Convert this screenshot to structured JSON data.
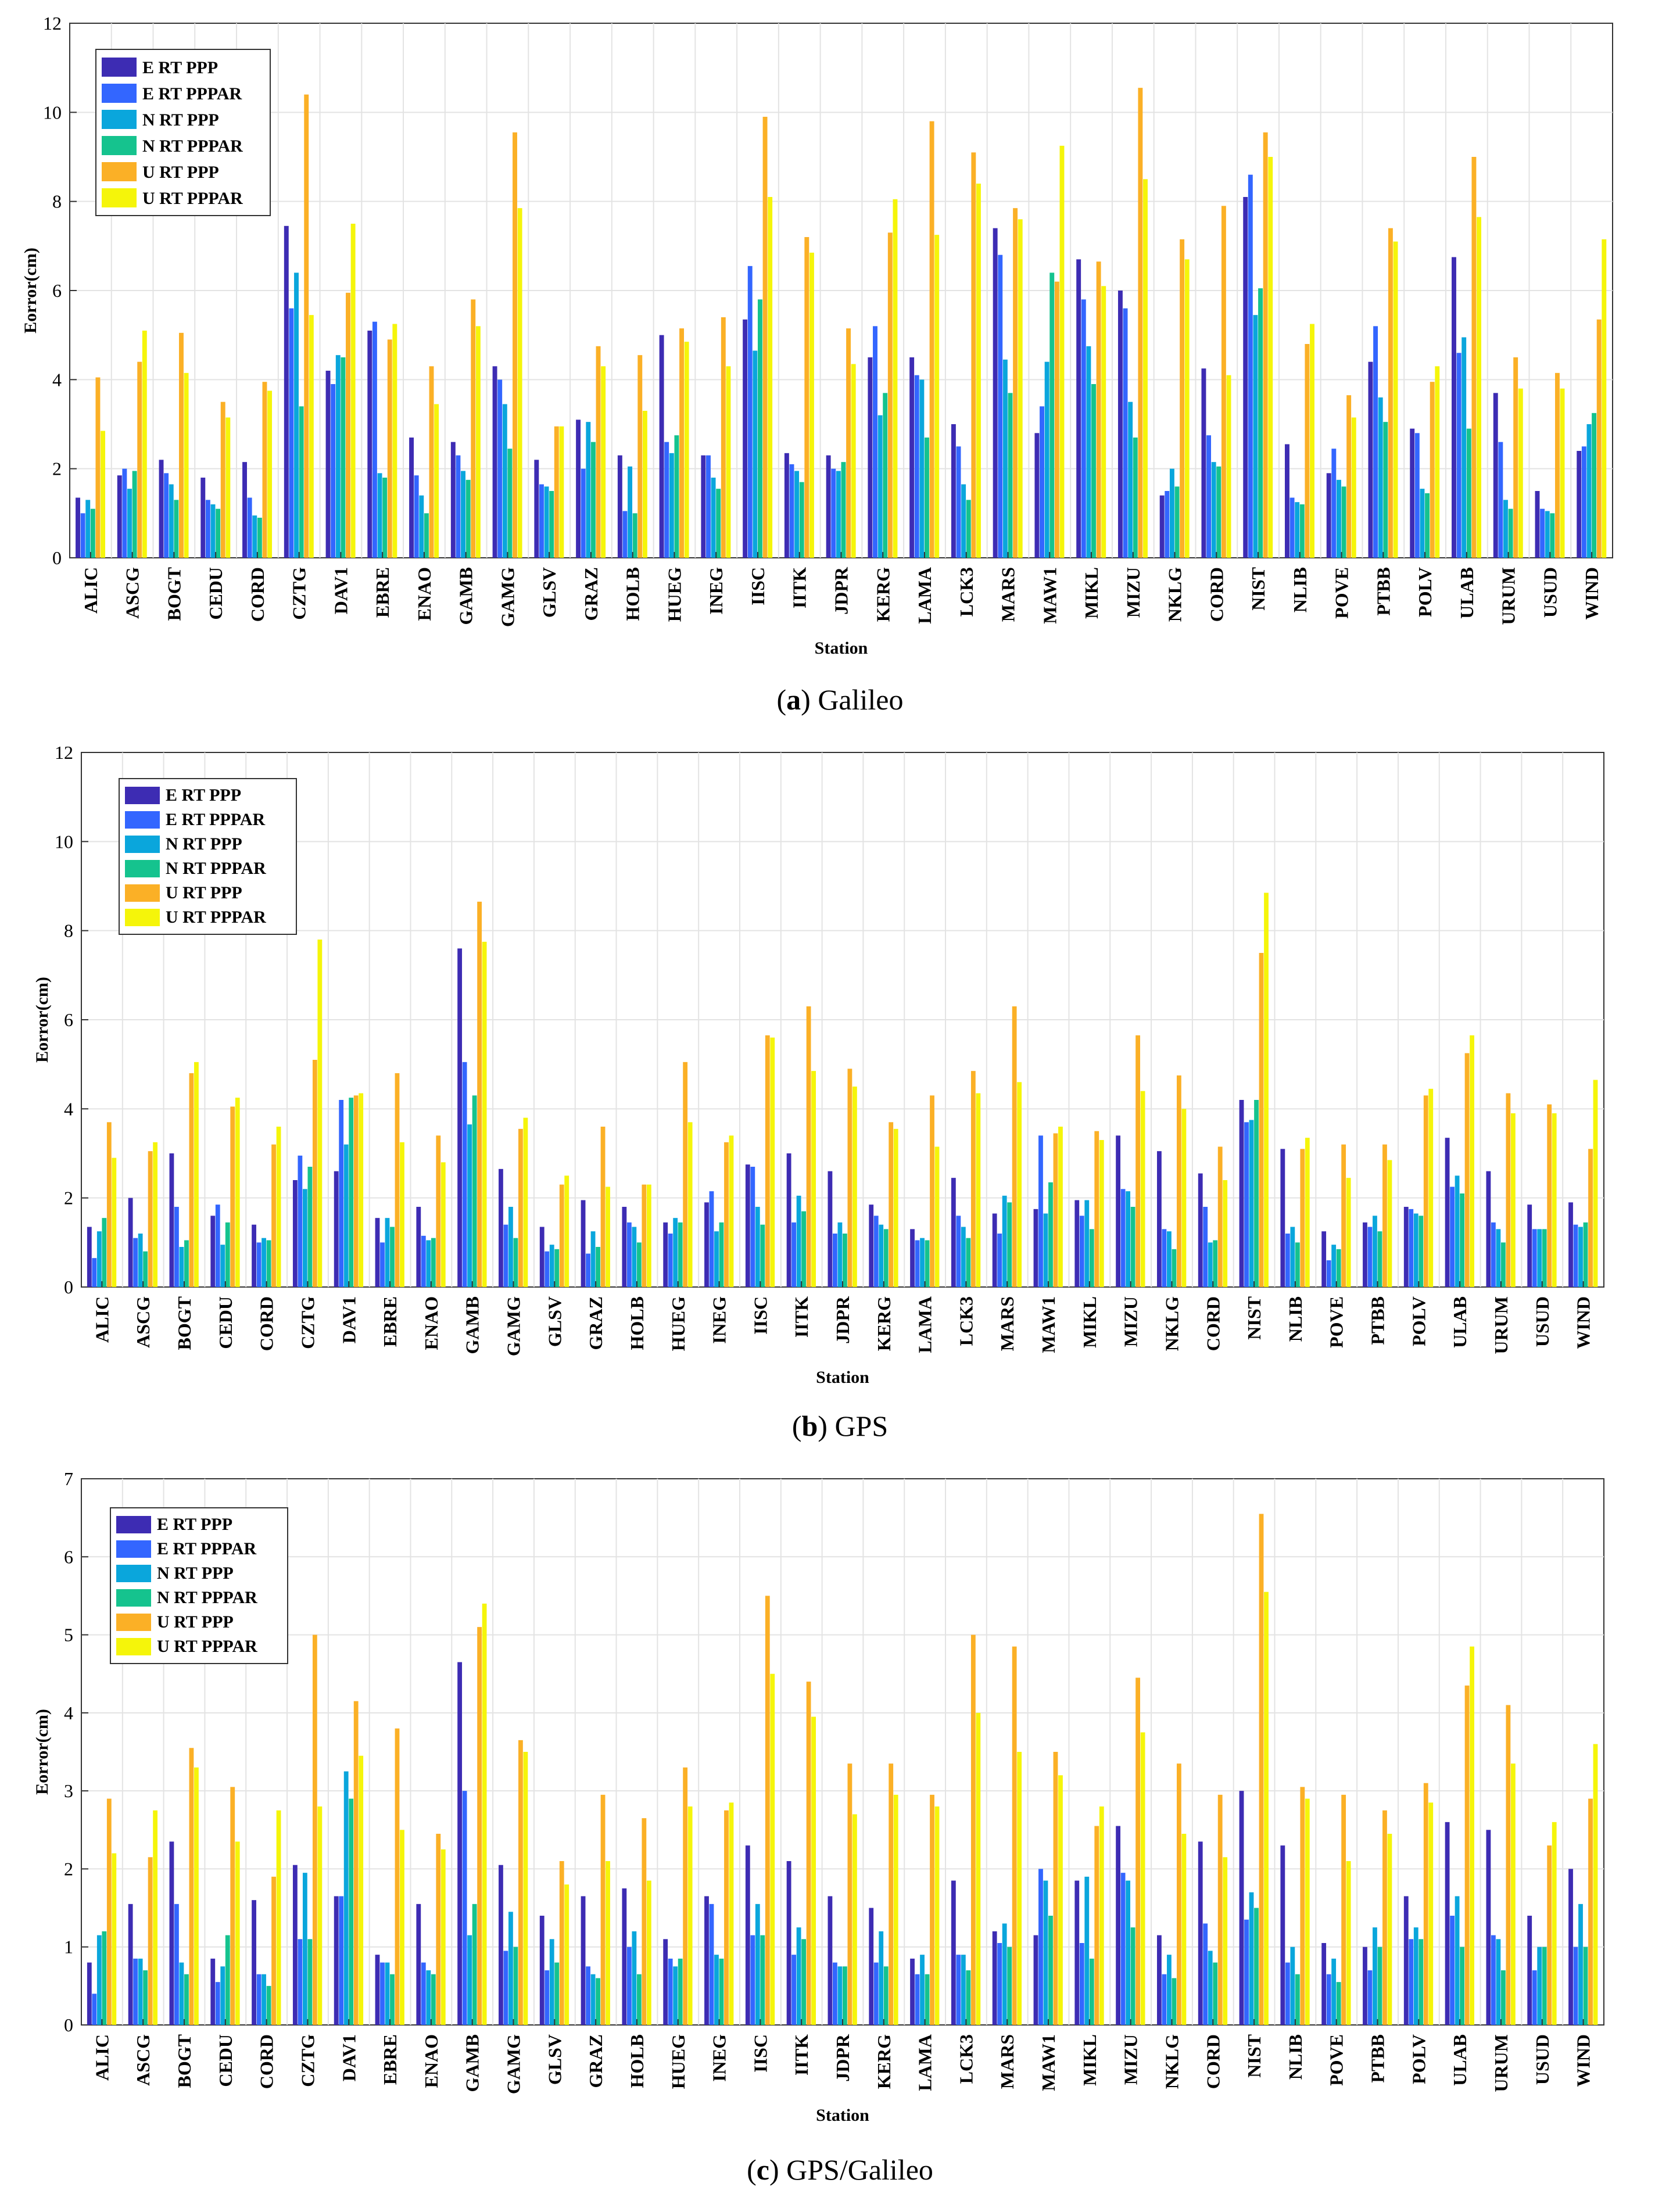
{
  "colors": {
    "E_RT_PPP": "#3d2cb3",
    "E_RT_PPPAR": "#3366ff",
    "N_RT_PPP": "#0aa6dc",
    "N_RT_PPPAR": "#15c38e",
    "U_RT_PPP": "#fbb026",
    "U_RT_PPPAR": "#f5f50a",
    "grid": "#e3e3e3",
    "axis": "#333333"
  },
  "captions": [
    {
      "letter": "a",
      "text": " Galileo"
    },
    {
      "letter": "b",
      "text": " GPS"
    },
    {
      "letter": "c",
      "text": " GPS/Galileo"
    }
  ],
  "chart_data": [
    {
      "type": "bar",
      "title": "(a) Galileo",
      "xlabel": "Station",
      "ylabel": "Eorror(cm)",
      "ylim": [
        0,
        12
      ],
      "yticks": [
        0,
        2,
        4,
        6,
        8,
        10,
        12
      ],
      "legend_position": "top-left",
      "categories": [
        "ALIC",
        "ASCG",
        "BOGT",
        "CEDU",
        "CORD",
        "CZTG",
        "DAV1",
        "EBRE",
        "ENAO",
        "GAMB",
        "GAMG",
        "GLSV",
        "GRAZ",
        "HOLB",
        "HUEG",
        "INEG",
        "IISC",
        "IITK",
        "JDPR",
        "KERG",
        "LAMA",
        "LCK3",
        "MARS",
        "MAW1",
        "MIKL",
        "MIZU",
        "NKLG",
        "CORD",
        "NIST",
        "NLIB",
        "POVE",
        "PTBB",
        "POLV",
        "ULAB",
        "URUM",
        "USUD",
        "WIND"
      ],
      "series": [
        {
          "name": "E RT PPP",
          "color_key": "E_RT_PPP",
          "values": [
            1.35,
            1.85,
            2.2,
            1.8,
            2.15,
            7.45,
            4.2,
            5.1,
            2.7,
            2.6,
            4.3,
            2.2,
            3.1,
            2.3,
            5.0,
            2.3,
            5.35,
            2.35,
            2.3,
            4.5,
            4.5,
            3.0,
            7.4,
            2.8,
            6.7,
            6.0,
            1.4,
            4.25,
            8.1,
            2.55,
            1.9,
            4.4,
            2.9,
            6.75,
            3.7,
            1.5,
            2.4
          ]
        },
        {
          "name": "E RT PPPAR",
          "color_key": "E_RT_PPPAR",
          "values": [
            1.0,
            2.0,
            1.9,
            1.3,
            1.35,
            5.6,
            3.9,
            5.3,
            1.85,
            2.3,
            4.0,
            1.65,
            2.0,
            1.05,
            2.6,
            2.3,
            6.55,
            2.1,
            2.0,
            5.2,
            4.1,
            2.5,
            6.8,
            3.4,
            5.8,
            5.6,
            1.5,
            2.75,
            8.6,
            1.35,
            2.45,
            5.2,
            2.8,
            4.6,
            2.6,
            1.1,
            2.5
          ]
        },
        {
          "name": "N RT PPP",
          "color_key": "N_RT_PPP",
          "values": [
            1.3,
            1.55,
            1.65,
            1.2,
            0.95,
            6.4,
            4.55,
            1.9,
            1.4,
            1.95,
            3.45,
            1.6,
            3.05,
            2.05,
            2.35,
            1.8,
            4.65,
            1.95,
            1.95,
            3.2,
            4.0,
            1.65,
            4.45,
            4.4,
            4.75,
            3.5,
            2.0,
            2.15,
            5.45,
            1.25,
            1.75,
            3.6,
            1.55,
            4.95,
            1.3,
            1.05,
            3.0
          ]
        },
        {
          "name": "N RT PPPAR",
          "color_key": "N_RT_PPPAR",
          "values": [
            1.1,
            1.95,
            1.3,
            1.1,
            0.9,
            3.4,
            4.5,
            1.8,
            1.0,
            1.75,
            2.45,
            1.5,
            2.6,
            1.0,
            2.75,
            1.55,
            5.8,
            1.7,
            2.15,
            3.7,
            2.7,
            1.3,
            3.7,
            6.4,
            3.9,
            2.7,
            1.6,
            2.05,
            6.05,
            1.2,
            1.6,
            3.05,
            1.45,
            2.9,
            1.1,
            1.0,
            3.25
          ]
        },
        {
          "name": "U RT PPP",
          "color_key": "U_RT_PPP",
          "values": [
            4.05,
            4.4,
            5.05,
            3.5,
            3.95,
            10.4,
            5.95,
            4.9,
            4.3,
            5.8,
            9.55,
            2.95,
            4.75,
            4.55,
            5.15,
            5.4,
            9.9,
            7.2,
            5.15,
            7.3,
            9.8,
            9.1,
            7.85,
            6.2,
            6.65,
            10.55,
            7.15,
            7.9,
            9.55,
            4.8,
            3.65,
            7.4,
            3.95,
            9.0,
            4.5,
            4.15,
            5.35
          ]
        },
        {
          "name": "U RT PPPAR",
          "color_key": "U_RT_PPPAR",
          "values": [
            2.85,
            5.1,
            4.15,
            3.15,
            3.75,
            5.45,
            7.5,
            5.25,
            3.45,
            5.2,
            7.85,
            2.95,
            4.3,
            3.3,
            4.85,
            4.3,
            8.1,
            6.85,
            4.35,
            8.05,
            7.25,
            8.4,
            7.6,
            9.25,
            6.1,
            8.5,
            6.7,
            4.1,
            9.0,
            5.25,
            3.15,
            7.1,
            4.3,
            7.65,
            3.8,
            3.8,
            7.15
          ]
        }
      ]
    },
    {
      "type": "bar",
      "title": "(b) GPS",
      "xlabel": "Station",
      "ylabel": "Eorror(cm)",
      "ylim": [
        0,
        12
      ],
      "yticks": [
        0,
        2,
        4,
        6,
        8,
        10,
        12
      ],
      "legend_position": "top-left",
      "categories": [
        "ALIC",
        "ASCG",
        "BOGT",
        "CEDU",
        "CORD",
        "CZTG",
        "DAV1",
        "EBRE",
        "ENAO",
        "GAMB",
        "GAMG",
        "GLSV",
        "GRAZ",
        "HOLB",
        "HUEG",
        "INEG",
        "IISC",
        "IITK",
        "JDPR",
        "KERG",
        "LAMA",
        "LCK3",
        "MARS",
        "MAW1",
        "MIKL",
        "MIZU",
        "NKLG",
        "CORD",
        "NIST",
        "NLIB",
        "POVE",
        "PTBB",
        "POLV",
        "ULAB",
        "URUM",
        "USUD",
        "WIND"
      ],
      "series": [
        {
          "name": "E RT PPP",
          "color_key": "E_RT_PPP",
          "values": [
            1.35,
            2.0,
            3.0,
            1.6,
            1.4,
            2.4,
            2.6,
            1.55,
            1.8,
            7.6,
            2.65,
            1.35,
            1.95,
            1.8,
            1.45,
            1.9,
            2.75,
            3.0,
            2.6,
            1.85,
            1.3,
            2.45,
            1.65,
            1.75,
            1.95,
            3.4,
            3.05,
            2.55,
            4.2,
            3.1,
            1.25,
            1.45,
            1.8,
            3.35,
            2.6,
            1.85,
            1.9
          ]
        },
        {
          "name": "E RT PPPAR",
          "color_key": "E_RT_PPPAR",
          "values": [
            0.65,
            1.1,
            1.8,
            1.85,
            1.0,
            2.95,
            4.2,
            1.0,
            1.15,
            5.05,
            1.4,
            0.8,
            0.75,
            1.45,
            1.2,
            2.15,
            2.7,
            1.45,
            1.2,
            1.6,
            1.05,
            1.6,
            1.2,
            3.4,
            1.6,
            2.2,
            1.3,
            1.8,
            3.7,
            1.2,
            0.6,
            1.35,
            1.75,
            2.25,
            1.45,
            1.3,
            1.4
          ]
        },
        {
          "name": "N RT PPP",
          "color_key": "N_RT_PPP",
          "values": [
            1.25,
            1.2,
            0.9,
            0.95,
            1.1,
            2.2,
            3.2,
            1.55,
            1.05,
            3.65,
            1.8,
            0.95,
            1.25,
            1.35,
            1.55,
            1.25,
            1.8,
            2.05,
            1.45,
            1.4,
            1.1,
            1.35,
            2.05,
            1.65,
            1.95,
            2.15,
            1.25,
            1.0,
            3.75,
            1.35,
            0.95,
            1.6,
            1.65,
            2.5,
            1.3,
            1.3,
            1.35
          ]
        },
        {
          "name": "N RT PPPAR",
          "color_key": "N_RT_PPPAR",
          "values": [
            1.55,
            0.8,
            1.05,
            1.45,
            1.05,
            2.7,
            4.25,
            1.35,
            1.1,
            4.3,
            1.1,
            0.85,
            0.9,
            1.0,
            1.45,
            1.45,
            1.4,
            1.7,
            1.2,
            1.3,
            1.05,
            1.1,
            1.9,
            2.35,
            1.3,
            1.8,
            0.85,
            1.05,
            4.2,
            1.0,
            0.85,
            1.25,
            1.6,
            2.1,
            1.0,
            1.3,
            1.45
          ]
        },
        {
          "name": "U RT PPP",
          "color_key": "U_RT_PPP",
          "values": [
            3.7,
            3.05,
            4.8,
            4.05,
            3.2,
            5.1,
            4.3,
            4.8,
            3.4,
            8.65,
            3.55,
            2.3,
            3.6,
            2.3,
            5.05,
            3.25,
            5.65,
            6.3,
            4.9,
            3.7,
            4.3,
            4.85,
            6.3,
            3.45,
            3.5,
            5.65,
            4.75,
            3.15,
            7.5,
            3.1,
            3.2,
            3.2,
            4.3,
            5.25,
            4.35,
            4.1,
            3.1
          ]
        },
        {
          "name": "U RT PPPAR",
          "color_key": "U_RT_PPPAR",
          "values": [
            2.9,
            3.25,
            5.05,
            4.25,
            3.6,
            7.8,
            4.35,
            3.25,
            2.8,
            7.75,
            3.8,
            2.5,
            2.25,
            2.3,
            3.7,
            3.4,
            5.6,
            4.85,
            4.5,
            3.55,
            3.15,
            4.35,
            4.6,
            3.6,
            3.3,
            4.4,
            4.0,
            2.4,
            8.85,
            3.35,
            2.45,
            2.85,
            4.45,
            5.65,
            3.9,
            3.9,
            4.65
          ]
        }
      ]
    },
    {
      "type": "bar",
      "title": "(c) GPS/Galileo",
      "xlabel": "Station",
      "ylabel": "Eorror(cm)",
      "ylim": [
        0,
        7
      ],
      "yticks": [
        0,
        1,
        2,
        3,
        4,
        5,
        6,
        7
      ],
      "legend_position": "top-left",
      "categories": [
        "ALIC",
        "ASCG",
        "BOGT",
        "CEDU",
        "CORD",
        "CZTG",
        "DAV1",
        "EBRE",
        "ENAO",
        "GAMB",
        "GAMG",
        "GLSV",
        "GRAZ",
        "HOLB",
        "HUEG",
        "INEG",
        "IISC",
        "IITK",
        "JDPR",
        "KERG",
        "LAMA",
        "LCK3",
        "MARS",
        "MAW1",
        "MIKL",
        "MIZU",
        "NKLG",
        "CORD",
        "NIST",
        "NLIB",
        "POVE",
        "PTBB",
        "POLV",
        "ULAB",
        "URUM",
        "USUD",
        "WIND"
      ],
      "series": [
        {
          "name": "E RT PPP",
          "color_key": "E_RT_PPP",
          "values": [
            0.8,
            1.55,
            2.35,
            0.85,
            1.6,
            2.05,
            1.65,
            0.9,
            1.55,
            4.65,
            2.05,
            1.4,
            1.65,
            1.75,
            1.1,
            1.65,
            2.3,
            2.1,
            1.65,
            1.5,
            0.85,
            1.85,
            1.2,
            1.15,
            1.85,
            2.55,
            1.15,
            2.35,
            3.0,
            2.3,
            1.05,
            1.0,
            1.65,
            2.6,
            2.5,
            1.4,
            2.0
          ]
        },
        {
          "name": "E RT PPPAR",
          "color_key": "E_RT_PPPAR",
          "values": [
            0.4,
            0.85,
            1.55,
            0.55,
            0.65,
            1.1,
            1.65,
            0.8,
            0.8,
            3.0,
            0.95,
            0.7,
            0.75,
            1.0,
            0.85,
            1.55,
            1.15,
            0.9,
            0.8,
            0.8,
            0.65,
            0.9,
            1.05,
            2.0,
            1.05,
            1.95,
            0.65,
            1.3,
            1.35,
            0.8,
            0.65,
            0.7,
            1.1,
            1.4,
            1.15,
            0.7,
            1.0
          ]
        },
        {
          "name": "N RT PPP",
          "color_key": "N_RT_PPP",
          "values": [
            1.15,
            0.85,
            0.8,
            0.75,
            0.65,
            1.95,
            3.25,
            0.8,
            0.7,
            1.15,
            1.45,
            1.1,
            0.65,
            1.2,
            0.75,
            0.9,
            1.55,
            1.25,
            0.75,
            1.2,
            0.9,
            0.9,
            1.3,
            1.85,
            1.9,
            1.85,
            0.9,
            0.95,
            1.7,
            1.0,
            0.85,
            1.25,
            1.25,
            1.65,
            1.1,
            1.0,
            1.55
          ]
        },
        {
          "name": "N RT PPPAR",
          "color_key": "N_RT_PPPAR",
          "values": [
            1.2,
            0.7,
            0.65,
            1.15,
            0.5,
            1.1,
            2.9,
            0.65,
            0.65,
            1.55,
            1.0,
            0.8,
            0.6,
            0.65,
            0.85,
            0.85,
            1.15,
            1.1,
            0.75,
            0.75,
            0.65,
            0.7,
            1.0,
            1.4,
            0.85,
            1.25,
            0.6,
            0.8,
            1.5,
            0.65,
            0.55,
            1.0,
            1.1,
            1.0,
            0.7,
            1.0,
            1.0
          ]
        },
        {
          "name": "U RT PPP",
          "color_key": "U_RT_PPP",
          "values": [
            2.9,
            2.15,
            3.55,
            3.05,
            1.9,
            5.0,
            4.15,
            3.8,
            2.45,
            5.1,
            3.65,
            2.1,
            2.95,
            2.65,
            3.3,
            2.75,
            5.5,
            4.4,
            3.35,
            3.35,
            2.95,
            5.0,
            4.85,
            3.5,
            2.55,
            4.45,
            3.35,
            2.95,
            6.55,
            3.05,
            2.95,
            2.75,
            3.1,
            4.35,
            4.1,
            2.3,
            2.9
          ]
        },
        {
          "name": "U RT PPPAR",
          "color_key": "U_RT_PPPAR",
          "values": [
            2.2,
            2.75,
            3.3,
            2.35,
            2.75,
            2.8,
            3.45,
            2.5,
            2.25,
            5.4,
            3.5,
            1.8,
            2.1,
            1.85,
            2.8,
            2.85,
            4.5,
            3.95,
            2.7,
            2.95,
            2.8,
            4.0,
            3.5,
            3.2,
            2.8,
            3.75,
            2.45,
            2.15,
            5.55,
            2.9,
            2.1,
            2.45,
            2.85,
            4.85,
            3.35,
            2.6,
            3.6
          ]
        }
      ]
    }
  ]
}
